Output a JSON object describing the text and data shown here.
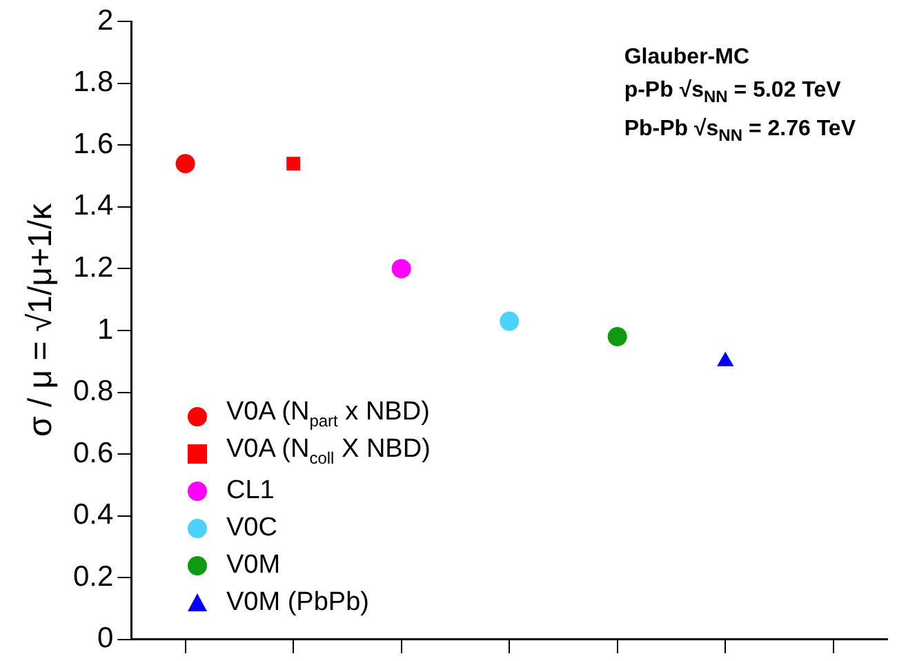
{
  "chart_data": {
    "type": "scatter",
    "ylabel": "σ / μ = √1/μ+1/κ",
    "annotations": [
      "Glauber-MC",
      "p-Pb  √s$_{NN}$ = 5.02 TeV",
      "Pb-Pb  √s$_{NN}$ = 2.76 TeV"
    ],
    "categories": [
      null,
      null,
      null,
      null,
      null,
      null,
      null
    ],
    "ylim": [
      0,
      2
    ],
    "yticks": [
      0,
      0.2,
      0.4,
      0.6,
      0.8,
      1,
      1.2,
      1.4,
      1.6,
      1.8,
      2
    ],
    "tick_labels": "y",
    "grid": false,
    "legend": "bottom left",
    "series": [
      {
        "name": "V0A (N$_{part}$ x NBD)",
        "color": "#ff0000",
        "marker": "circle",
        "values": [
          1.54,
          null,
          null,
          null,
          null,
          null,
          null
        ]
      },
      {
        "name": "V0A (N$_{coll}$ X NBD)",
        "color": "#ff0000",
        "marker": "square",
        "values": [
          null,
          1.54,
          null,
          null,
          null,
          null,
          null
        ]
      },
      {
        "name": "CL1",
        "color": "#ff00ff",
        "marker": "circle",
        "values": [
          null,
          null,
          1.2,
          null,
          null,
          null,
          null
        ]
      },
      {
        "name": "V0C",
        "color": "#4dd2ff",
        "marker": "circle",
        "values": [
          null,
          null,
          null,
          1.03,
          null,
          null,
          null
        ]
      },
      {
        "name": "V0M",
        "color": "#119911",
        "marker": "circle",
        "values": [
          null,
          null,
          null,
          null,
          0.98,
          null,
          null
        ]
      },
      {
        "name": "V0M (PbPb)",
        "color": "#0000ff",
        "marker": "triangle",
        "values": [
          null,
          null,
          null,
          null,
          null,
          0.9,
          null
        ]
      }
    ]
  }
}
